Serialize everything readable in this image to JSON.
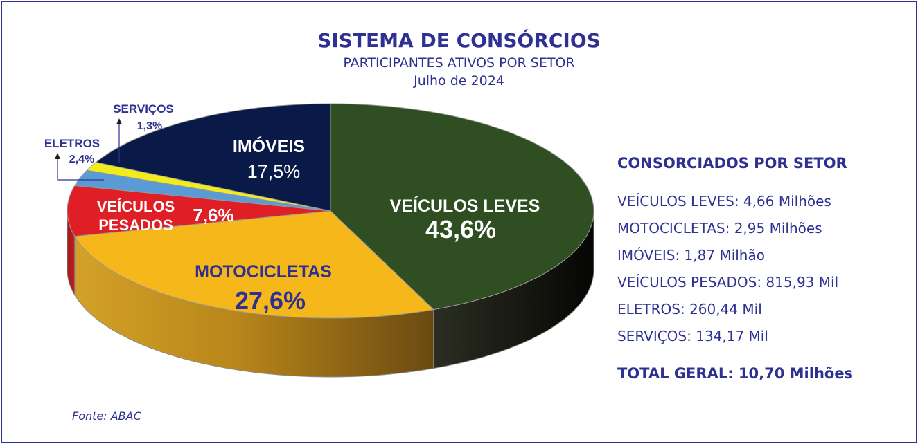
{
  "title": "SISTEMA DE CONSÓRCIOS",
  "subtitle": "PARTICIPANTES ATIVOS POR SETOR",
  "date": "Julho de 2024",
  "source": "Fonte: ABAC",
  "chart_data": {
    "type": "pie",
    "title": "SISTEMA DE CONSÓRCIOS",
    "subtitle": "PARTICIPANTES ATIVOS POR SETOR",
    "slices": [
      {
        "label": "VEÍCULOS LEVES",
        "label_line2": "",
        "value": 43.6,
        "value_label": "43,6%",
        "color": "#2f4f23"
      },
      {
        "label": "MOTOCICLETAS",
        "label_line2": "",
        "value": 27.6,
        "value_label": "27,6%",
        "color": "#f5b719"
      },
      {
        "label": "VEÍCULOS",
        "label_line2": "PESADOS",
        "value": 7.6,
        "value_label": "7,6%",
        "color": "#e01e26"
      },
      {
        "label": "ELETROS",
        "label_line2": "",
        "value": 2.4,
        "value_label": "2,4%",
        "color": "#5b9bd5"
      },
      {
        "label": "SERVIÇOS",
        "label_line2": "",
        "value": 1.3,
        "value_label": "1,3%",
        "color": "#f2ec1c"
      },
      {
        "label": "IMÓVEIS",
        "label_line2": "",
        "value": 17.5,
        "value_label": "17,5%",
        "color": "#0a1a48"
      }
    ]
  },
  "legend": {
    "title": "CONSORCIADOS POR SETOR",
    "items": [
      "VEÍCULOS LEVES: 4,66 Milhões",
      "MOTOCICLETAS: 2,95 Milhões",
      "IMÓVEIS: 1,87 Milhão",
      "VEÍCULOS PESADOS: 815,93 Mil",
      "ELETROS: 260,44 Mil",
      "SERVIÇOS: 134,17 Mil"
    ],
    "total": "TOTAL GERAL: 10,70 Milhões"
  }
}
